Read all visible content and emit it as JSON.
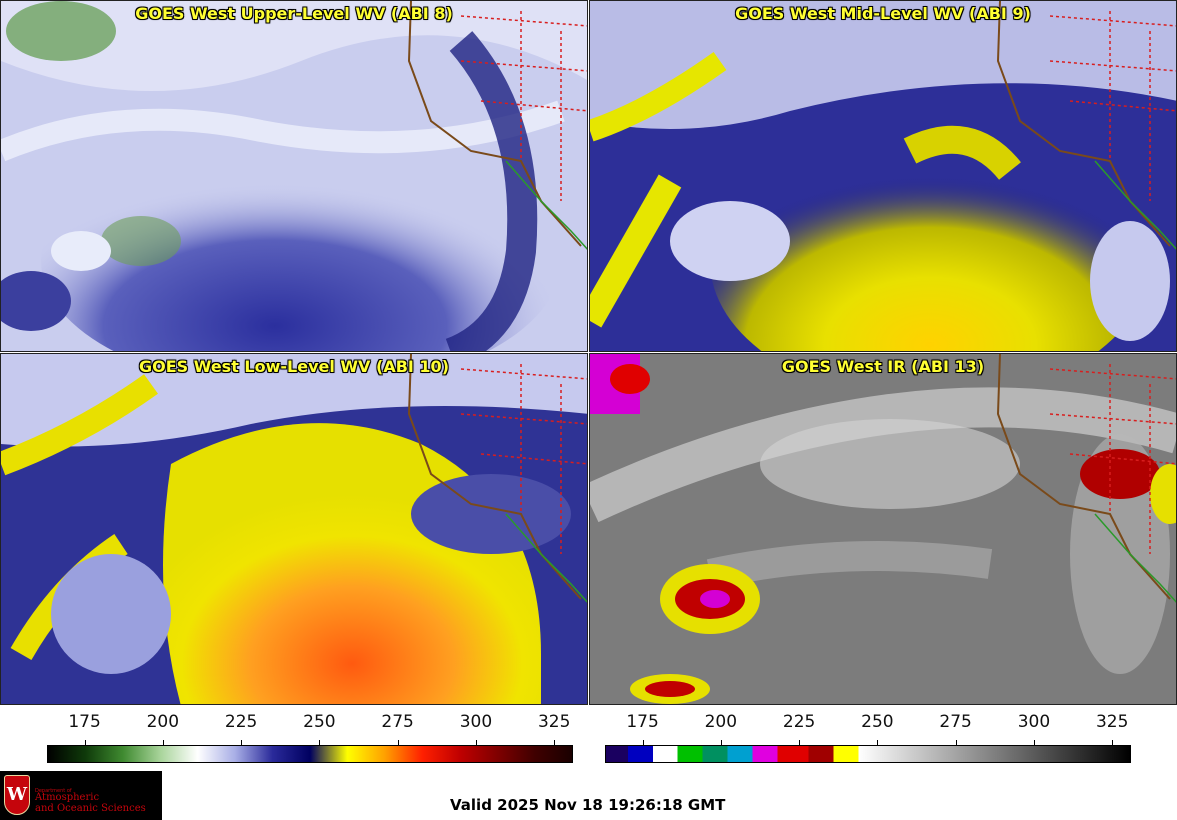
{
  "panels": [
    {
      "title": "GOES West Upper-Level WV (ABI 8)",
      "scheme": "upper"
    },
    {
      "title": "GOES West Mid-Level WV (ABI 9)",
      "scheme": "mid"
    },
    {
      "title": "GOES West Low-Level WV (ABI 10)",
      "scheme": "low"
    },
    {
      "title": "GOES West IR (ABI 13)",
      "scheme": "ir"
    }
  ],
  "colorbars": {
    "wv": {
      "ticks": [
        "175",
        "200",
        "225",
        "250",
        "275",
        "300",
        "325"
      ],
      "tick_values": [
        175,
        200,
        225,
        250,
        275,
        300,
        325
      ],
      "range": [
        163,
        331
      ],
      "colors": [
        "#000000",
        "#0f3a0a",
        "#3f8a30",
        "#a8d49a",
        "#ffffff",
        "#a8aee6",
        "#2a2a9a",
        "#000060",
        "#ffff00",
        "#ffa000",
        "#ff2000",
        "#c00000",
        "#800000",
        "#400000",
        "#1a0000"
      ]
    },
    "ir": {
      "ticks": [
        "175",
        "200",
        "225",
        "250",
        "275",
        "300",
        "325"
      ],
      "tick_values": [
        175,
        200,
        225,
        250,
        275,
        300,
        325
      ],
      "range": [
        163,
        331
      ],
      "segments": [
        {
          "from": 163,
          "to": 170,
          "color": "#1a0060"
        },
        {
          "from": 170,
          "to": 178,
          "color": "#0000c0"
        },
        {
          "from": 178,
          "to": 186,
          "color": "#ffffff"
        },
        {
          "from": 186,
          "to": 194,
          "color": "#00c000"
        },
        {
          "from": 194,
          "to": 202,
          "color": "#009060"
        },
        {
          "from": 202,
          "to": 210,
          "color": "#00a0d0"
        },
        {
          "from": 210,
          "to": 218,
          "color": "#e000e0"
        },
        {
          "from": 218,
          "to": 228,
          "color": "#e00000"
        },
        {
          "from": 228,
          "to": 236,
          "color": "#a00000"
        },
        {
          "from": 236,
          "to": 244,
          "color": "#ffff00"
        },
        {
          "from": 244,
          "to": 331,
          "color": "gradient"
        }
      ]
    }
  },
  "logo": {
    "crest_letter": "W",
    "dept": "Department of",
    "line1": "Atmospheric",
    "line2": "and Oceanic Sciences"
  },
  "valid_text": "Valid 2025 Nov 18 19:26:18 GMT"
}
